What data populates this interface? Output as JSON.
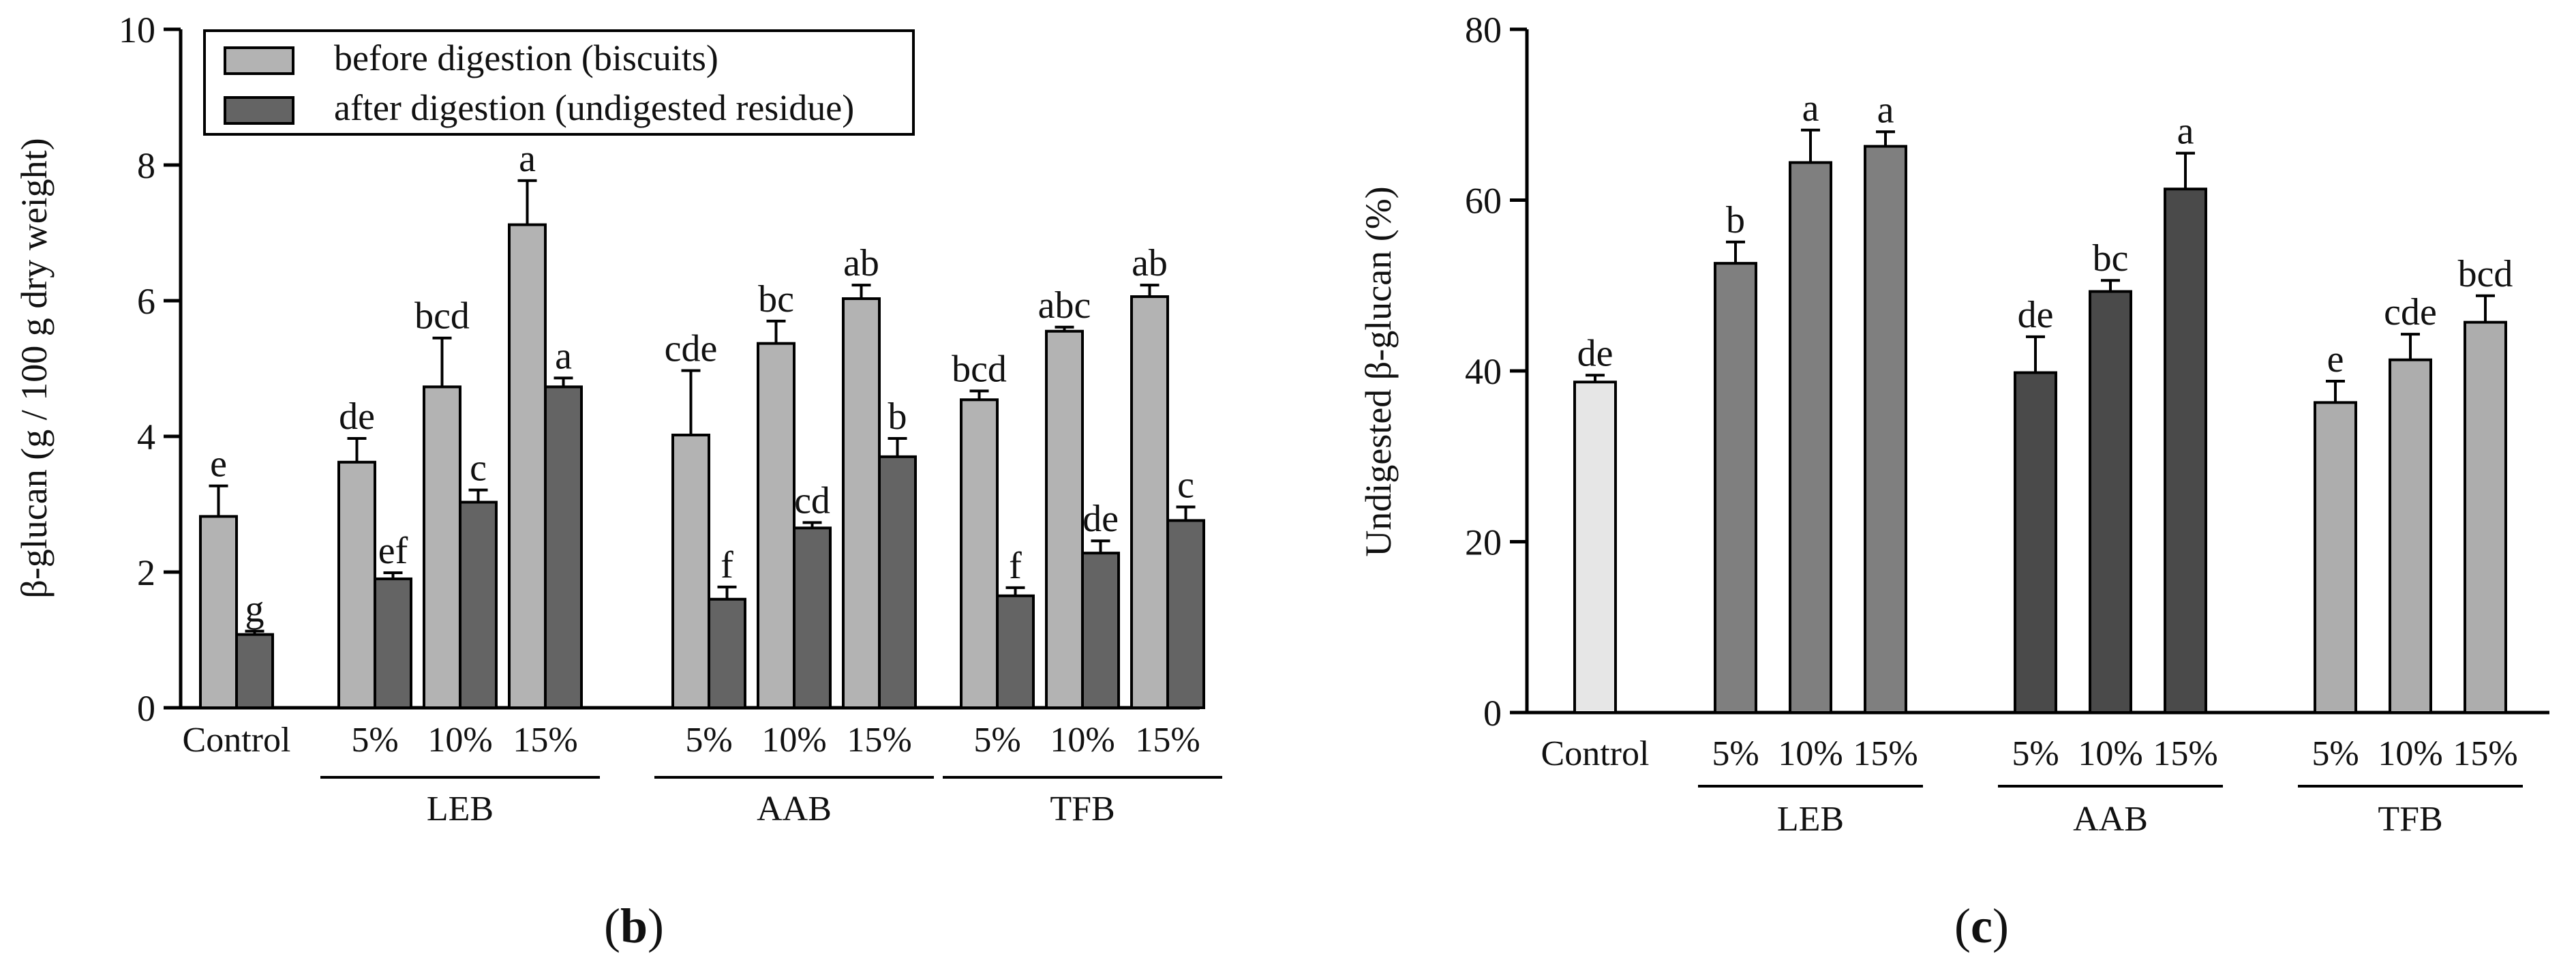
{
  "chart_data": [
    {
      "panel": "b",
      "panel_label": {
        "open": "(",
        "letter": "b",
        "close": ")"
      },
      "type": "bar",
      "ylabel": "β-glucan (g / 100 g dry weight)",
      "xlabel": "",
      "ylim": [
        0,
        10
      ],
      "yticks": [
        0,
        2,
        4,
        6,
        8,
        10
      ],
      "legend_position": "top-left",
      "legend": [
        {
          "series": "before",
          "label": "before digestion (biscuits)",
          "color": "#b3b3b3"
        },
        {
          "series": "after",
          "label": "after digestion (undigested residue)",
          "color": "#646464"
        }
      ],
      "groups": [
        {
          "name": "",
          "categories": [
            {
              "label": "Control",
              "bars": [
                {
                  "series": "before",
                  "value": 2.82,
                  "error": 0.45,
                  "letter": "e"
                },
                {
                  "series": "after",
                  "value": 1.08,
                  "error": 0.05,
                  "letter": "g"
                }
              ]
            }
          ]
        },
        {
          "name": "LEB",
          "categories": [
            {
              "label": "5%",
              "bars": [
                {
                  "series": "before",
                  "value": 3.62,
                  "error": 0.35,
                  "letter": "de"
                },
                {
                  "series": "after",
                  "value": 1.9,
                  "error": 0.09,
                  "letter": "ef"
                }
              ]
            },
            {
              "label": "10%",
              "bars": [
                {
                  "series": "before",
                  "value": 4.73,
                  "error": 0.72,
                  "letter": "bcd"
                },
                {
                  "series": "after",
                  "value": 3.03,
                  "error": 0.18,
                  "letter": "c"
                }
              ]
            },
            {
              "label": "15%",
              "bars": [
                {
                  "series": "before",
                  "value": 7.12,
                  "error": 0.65,
                  "letter": "a"
                },
                {
                  "series": "after",
                  "value": 4.73,
                  "error": 0.13,
                  "letter": "a"
                }
              ]
            }
          ]
        },
        {
          "name": "AAB",
          "categories": [
            {
              "label": "5%",
              "bars": [
                {
                  "series": "before",
                  "value": 4.02,
                  "error": 0.95,
                  "letter": "cde"
                },
                {
                  "series": "after",
                  "value": 1.6,
                  "error": 0.18,
                  "letter": "f"
                }
              ]
            },
            {
              "label": "10%",
              "bars": [
                {
                  "series": "before",
                  "value": 5.37,
                  "error": 0.33,
                  "letter": "bc"
                },
                {
                  "series": "after",
                  "value": 2.65,
                  "error": 0.08,
                  "letter": "cd"
                }
              ]
            },
            {
              "label": "15%",
              "bars": [
                {
                  "series": "before",
                  "value": 6.03,
                  "error": 0.2,
                  "letter": "ab"
                },
                {
                  "series": "after",
                  "value": 3.7,
                  "error": 0.27,
                  "letter": "b"
                }
              ]
            }
          ]
        },
        {
          "name": "TFB",
          "categories": [
            {
              "label": "5%",
              "bars": [
                {
                  "series": "before",
                  "value": 4.54,
                  "error": 0.13,
                  "letter": "bcd"
                },
                {
                  "series": "after",
                  "value": 1.65,
                  "error": 0.12,
                  "letter": "f"
                }
              ]
            },
            {
              "label": "10%",
              "bars": [
                {
                  "series": "before",
                  "value": 5.55,
                  "error": 0.06,
                  "letter": "abc"
                },
                {
                  "series": "after",
                  "value": 2.28,
                  "error": 0.18,
                  "letter": "de"
                }
              ]
            },
            {
              "label": "15%",
              "bars": [
                {
                  "series": "before",
                  "value": 6.06,
                  "error": 0.17,
                  "letter": "ab"
                },
                {
                  "series": "after",
                  "value": 2.76,
                  "error": 0.2,
                  "letter": "c"
                }
              ]
            }
          ]
        }
      ]
    },
    {
      "panel": "c",
      "panel_label": {
        "open": "(",
        "letter": "c",
        "close": ")"
      },
      "type": "bar",
      "ylabel": "Undigested β-glucan (%)",
      "xlabel": "",
      "ylim": [
        0,
        80
      ],
      "yticks": [
        0,
        20,
        40,
        60,
        80
      ],
      "groups": [
        {
          "name": "",
          "color": "#e6e6e6",
          "categories": [
            {
              "label": "Control",
              "value": 38.7,
              "error": 0.8,
              "letter": "de"
            }
          ]
        },
        {
          "name": "LEB",
          "color": "#7f7f7f",
          "categories": [
            {
              "label": "5%",
              "value": 52.6,
              "error": 2.5,
              "letter": "b"
            },
            {
              "label": "10%",
              "value": 64.4,
              "error": 3.8,
              "letter": "a"
            },
            {
              "label": "15%",
              "value": 66.3,
              "error": 1.7,
              "letter": "a"
            }
          ]
        },
        {
          "name": "AAB",
          "color": "#4a4a4a",
          "categories": [
            {
              "label": "5%",
              "value": 39.8,
              "error": 4.2,
              "letter": "de"
            },
            {
              "label": "10%",
              "value": 49.3,
              "error": 1.3,
              "letter": "bc"
            },
            {
              "label": "15%",
              "value": 61.3,
              "error": 4.2,
              "letter": "a"
            }
          ]
        },
        {
          "name": "TFB",
          "color": "#adadad",
          "categories": [
            {
              "label": "5%",
              "value": 36.3,
              "error": 2.5,
              "letter": "e"
            },
            {
              "label": "10%",
              "value": 41.3,
              "error": 3.0,
              "letter": "cde"
            },
            {
              "label": "15%",
              "value": 45.7,
              "error": 3.1,
              "letter": "bcd"
            }
          ]
        }
      ]
    }
  ]
}
